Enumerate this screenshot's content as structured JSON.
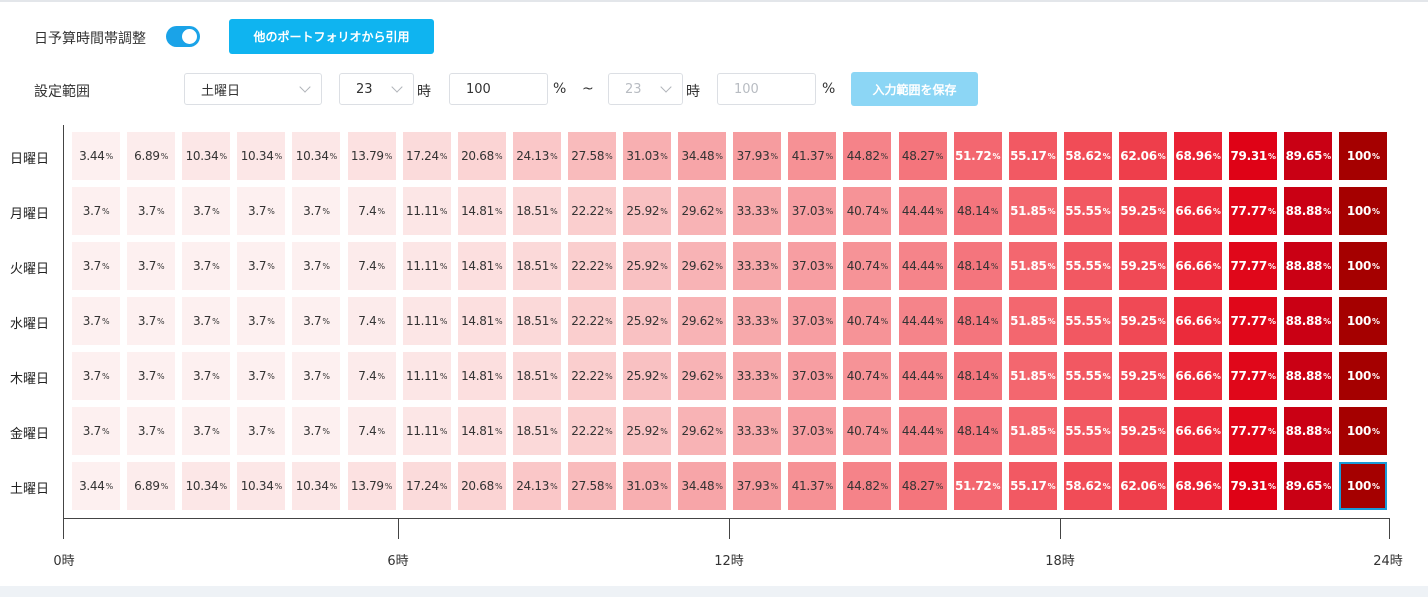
{
  "header": {
    "toggle_label": "日予算時間帯調整",
    "toggle_on": true,
    "import_button": "他のポートフォリオから引用"
  },
  "range": {
    "label": "設定範囲",
    "day_select": "土曜日",
    "start_hour": "23",
    "hour_unit": "時",
    "start_value": "100",
    "percent_unit": "%",
    "tilde": "~",
    "end_hour": "23",
    "end_value_placeholder": "100",
    "save_button": "入力範囲を保存"
  },
  "colors": {
    "accent": "#0fb4f0",
    "selection": "#1a9ad6",
    "heat_low": "#fdf2f2",
    "heat_high": "#a50000"
  },
  "chart_data": {
    "type": "heatmap",
    "rows": [
      "日曜日",
      "月曜日",
      "火曜日",
      "水曜日",
      "木曜日",
      "金曜日",
      "土曜日"
    ],
    "hours": [
      "0",
      "1",
      "2",
      "3",
      "4",
      "5",
      "6",
      "7",
      "8",
      "9",
      "10",
      "11",
      "12",
      "13",
      "14",
      "15",
      "16",
      "17",
      "18",
      "19",
      "20",
      "21",
      "22",
      "23"
    ],
    "values": [
      [
        "3.44",
        "6.89",
        "10.34",
        "10.34",
        "10.34",
        "13.79",
        "17.24",
        "20.68",
        "24.13",
        "27.58",
        "31.03",
        "34.48",
        "37.93",
        "41.37",
        "44.82",
        "48.27",
        "51.72",
        "55.17",
        "58.62",
        "62.06",
        "68.96",
        "79.31",
        "89.65",
        "100"
      ],
      [
        "3.7",
        "3.7",
        "3.7",
        "3.7",
        "3.7",
        "7.4",
        "11.11",
        "14.81",
        "18.51",
        "22.22",
        "25.92",
        "29.62",
        "33.33",
        "37.03",
        "40.74",
        "44.44",
        "48.14",
        "51.85",
        "55.55",
        "59.25",
        "66.66",
        "77.77",
        "88.88",
        "100"
      ],
      [
        "3.7",
        "3.7",
        "3.7",
        "3.7",
        "3.7",
        "7.4",
        "11.11",
        "14.81",
        "18.51",
        "22.22",
        "25.92",
        "29.62",
        "33.33",
        "37.03",
        "40.74",
        "44.44",
        "48.14",
        "51.85",
        "55.55",
        "59.25",
        "66.66",
        "77.77",
        "88.88",
        "100"
      ],
      [
        "3.7",
        "3.7",
        "3.7",
        "3.7",
        "3.7",
        "7.4",
        "11.11",
        "14.81",
        "18.51",
        "22.22",
        "25.92",
        "29.62",
        "33.33",
        "37.03",
        "40.74",
        "44.44",
        "48.14",
        "51.85",
        "55.55",
        "59.25",
        "66.66",
        "77.77",
        "88.88",
        "100"
      ],
      [
        "3.7",
        "3.7",
        "3.7",
        "3.7",
        "3.7",
        "7.4",
        "11.11",
        "14.81",
        "18.51",
        "22.22",
        "25.92",
        "29.62",
        "33.33",
        "37.03",
        "40.74",
        "44.44",
        "48.14",
        "51.85",
        "55.55",
        "59.25",
        "66.66",
        "77.77",
        "88.88",
        "100"
      ],
      [
        "3.7",
        "3.7",
        "3.7",
        "3.7",
        "3.7",
        "7.4",
        "11.11",
        "14.81",
        "18.51",
        "22.22",
        "25.92",
        "29.62",
        "33.33",
        "37.03",
        "40.74",
        "44.44",
        "48.14",
        "51.85",
        "55.55",
        "59.25",
        "66.66",
        "77.77",
        "88.88",
        "100"
      ],
      [
        "3.44",
        "6.89",
        "10.34",
        "10.34",
        "10.34",
        "13.79",
        "17.24",
        "20.68",
        "24.13",
        "27.58",
        "31.03",
        "34.48",
        "37.93",
        "41.37",
        "44.82",
        "48.27",
        "51.72",
        "55.17",
        "58.62",
        "62.06",
        "68.96",
        "79.31",
        "89.65",
        "100"
      ]
    ],
    "unit": "%",
    "selected_cell": {
      "row": 6,
      "hour": 23
    },
    "x_ticks": [
      "0時",
      "6時",
      "12時",
      "18時",
      "24時"
    ]
  }
}
